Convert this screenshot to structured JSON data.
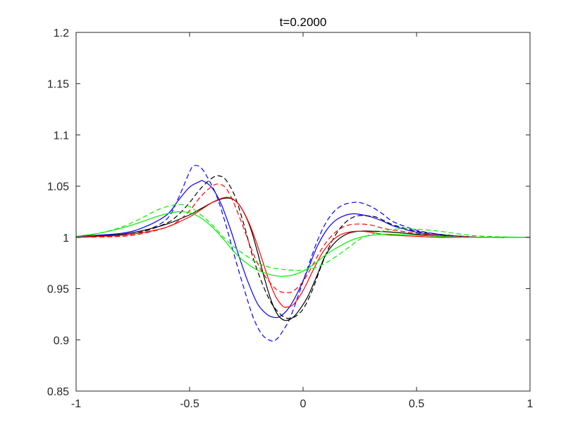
{
  "chart_data": {
    "type": "line",
    "title": "t=0.2000",
    "xlabel": "",
    "ylabel": "",
    "xlim": [
      -1,
      1
    ],
    "ylim": [
      0.85,
      1.2
    ],
    "xticks": [
      -1,
      -0.5,
      0,
      0.5,
      1
    ],
    "xtick_labels": [
      "-1",
      "-0.5",
      "0",
      "0.5",
      "1"
    ],
    "yticks": [
      0.85,
      0.9,
      0.95,
      1,
      1.05,
      1.1,
      1.15,
      1.2
    ],
    "ytick_labels": [
      "0.85",
      "0.9",
      "0.95",
      "1",
      "1.05",
      "1.1",
      "1.15",
      "1.2"
    ],
    "grid": false,
    "legend": "none",
    "series": [
      {
        "color": "#0000ff",
        "style": "dashed",
        "x": [
          -1.0,
          -0.8,
          -0.7,
          -0.6,
          -0.55,
          -0.5,
          -0.48,
          -0.45,
          -0.42,
          -0.38,
          -0.34,
          -0.3,
          -0.26,
          -0.22,
          -0.18,
          -0.14,
          -0.12,
          -0.1,
          -0.06,
          -0.02,
          0.02,
          0.06,
          0.1,
          0.14,
          0.18,
          0.22,
          0.25,
          0.3,
          0.35,
          0.4,
          0.5,
          0.6,
          0.7,
          0.8,
          1.0
        ],
        "y": [
          1.0,
          1.002,
          1.006,
          1.018,
          1.038,
          1.064,
          1.07,
          1.068,
          1.058,
          1.04,
          1.012,
          0.98,
          0.95,
          0.922,
          0.905,
          0.899,
          0.9,
          0.905,
          0.92,
          0.944,
          0.97,
          0.995,
          1.014,
          1.026,
          1.032,
          1.034,
          1.034,
          1.03,
          1.023,
          1.015,
          1.007,
          1.003,
          1.001,
          1.0,
          1.0
        ]
      },
      {
        "color": "#0000ff",
        "style": "solid",
        "x": [
          -1.0,
          -0.8,
          -0.7,
          -0.6,
          -0.55,
          -0.5,
          -0.46,
          -0.44,
          -0.4,
          -0.36,
          -0.32,
          -0.28,
          -0.24,
          -0.2,
          -0.16,
          -0.13,
          -0.1,
          -0.06,
          -0.02,
          0.02,
          0.06,
          0.1,
          0.14,
          0.18,
          0.22,
          0.26,
          0.3,
          0.35,
          0.4,
          0.5,
          0.6,
          0.7,
          0.8,
          1.0
        ],
        "y": [
          1.001,
          1.004,
          1.01,
          1.022,
          1.036,
          1.049,
          1.054,
          1.055,
          1.048,
          1.032,
          1.008,
          0.98,
          0.955,
          0.935,
          0.925,
          0.922,
          0.923,
          0.932,
          0.948,
          0.968,
          0.99,
          1.006,
          1.016,
          1.021,
          1.023,
          1.022,
          1.02,
          1.016,
          1.011,
          1.005,
          1.002,
          1.001,
          1.0,
          1.0
        ]
      },
      {
        "color": "#000000",
        "style": "dashed",
        "x": [
          -1.0,
          -0.8,
          -0.7,
          -0.6,
          -0.55,
          -0.5,
          -0.45,
          -0.4,
          -0.37,
          -0.34,
          -0.3,
          -0.26,
          -0.22,
          -0.18,
          -0.14,
          -0.1,
          -0.07,
          -0.04,
          0.0,
          0.04,
          0.08,
          0.12,
          0.16,
          0.2,
          0.24,
          0.28,
          0.32,
          0.36,
          0.4,
          0.5,
          0.6,
          0.7,
          0.8,
          1.0
        ],
        "y": [
          1.0,
          1.002,
          1.006,
          1.014,
          1.022,
          1.034,
          1.048,
          1.058,
          1.06,
          1.056,
          1.04,
          1.012,
          0.98,
          0.955,
          0.936,
          0.925,
          0.921,
          0.922,
          0.93,
          0.948,
          0.972,
          0.993,
          1.008,
          1.017,
          1.021,
          1.021,
          1.02,
          1.016,
          1.012,
          1.006,
          1.003,
          1.001,
          1.0,
          1.0
        ]
      },
      {
        "color": "#000000",
        "style": "solid",
        "x": [
          -1.0,
          -0.8,
          -0.7,
          -0.6,
          -0.5,
          -0.45,
          -0.4,
          -0.35,
          -0.32,
          -0.29,
          -0.26,
          -0.23,
          -0.2,
          -0.17,
          -0.14,
          -0.11,
          -0.08,
          -0.05,
          -0.02,
          0.02,
          0.06,
          0.1,
          0.15,
          0.2,
          0.25,
          0.3,
          0.4,
          0.5,
          0.6,
          0.7,
          0.8,
          1.0
        ],
        "y": [
          1.0,
          1.003,
          1.007,
          1.013,
          1.022,
          1.028,
          1.034,
          1.038,
          1.038,
          1.034,
          1.024,
          1.008,
          0.985,
          0.96,
          0.938,
          0.924,
          0.919,
          0.921,
          0.928,
          0.942,
          0.962,
          0.983,
          0.997,
          1.004,
          1.006,
          1.006,
          1.005,
          1.003,
          1.001,
          1.0,
          1.0,
          1.0
        ]
      },
      {
        "color": "#ff0000",
        "style": "dashed",
        "x": [
          -1.0,
          -0.8,
          -0.7,
          -0.6,
          -0.55,
          -0.5,
          -0.45,
          -0.4,
          -0.37,
          -0.34,
          -0.31,
          -0.27,
          -0.23,
          -0.19,
          -0.15,
          -0.11,
          -0.07,
          -0.04,
          0.0,
          0.04,
          0.08,
          0.12,
          0.16,
          0.2,
          0.25,
          0.3,
          0.35,
          0.4,
          0.5,
          0.6,
          0.7,
          0.8,
          1.0
        ],
        "y": [
          1.0,
          1.001,
          1.004,
          1.01,
          1.016,
          1.026,
          1.04,
          1.05,
          1.052,
          1.048,
          1.036,
          1.014,
          0.99,
          0.97,
          0.957,
          0.948,
          0.946,
          0.948,
          0.957,
          0.972,
          0.988,
          1.0,
          1.008,
          1.012,
          1.013,
          1.012,
          1.009,
          1.007,
          1.004,
          1.002,
          1.001,
          1.0,
          1.0
        ]
      },
      {
        "color": "#ff0000",
        "style": "solid",
        "x": [
          -1.0,
          -0.8,
          -0.7,
          -0.6,
          -0.5,
          -0.45,
          -0.4,
          -0.36,
          -0.33,
          -0.3,
          -0.27,
          -0.24,
          -0.21,
          -0.18,
          -0.15,
          -0.12,
          -0.09,
          -0.07,
          -0.04,
          0.0,
          0.04,
          0.08,
          0.12,
          0.16,
          0.2,
          0.25,
          0.3,
          0.35,
          0.4,
          0.5,
          0.6,
          0.7,
          0.8,
          1.0
        ],
        "y": [
          1.0,
          1.002,
          1.005,
          1.01,
          1.02,
          1.027,
          1.034,
          1.038,
          1.039,
          1.036,
          1.028,
          1.015,
          0.998,
          0.978,
          0.958,
          0.942,
          0.933,
          0.932,
          0.935,
          0.948,
          0.966,
          0.983,
          0.995,
          1.002,
          1.005,
          1.006,
          1.005,
          1.003,
          1.002,
          1.001,
          1.0,
          1.0,
          1.0,
          1.0
        ]
      },
      {
        "color": "#00ee00",
        "style": "dashed",
        "x": [
          -1.0,
          -0.9,
          -0.8,
          -0.7,
          -0.65,
          -0.6,
          -0.55,
          -0.5,
          -0.45,
          -0.4,
          -0.35,
          -0.3,
          -0.25,
          -0.2,
          -0.15,
          -0.1,
          -0.05,
          0.0,
          0.05,
          0.1,
          0.15,
          0.2,
          0.25,
          0.3,
          0.35,
          0.4,
          0.5,
          0.6,
          0.7,
          0.8,
          1.0
        ],
        "y": [
          1.001,
          1.004,
          1.01,
          1.02,
          1.026,
          1.03,
          1.032,
          1.03,
          1.022,
          1.012,
          1.0,
          0.99,
          0.982,
          0.975,
          0.971,
          0.969,
          0.968,
          0.968,
          0.97,
          0.975,
          0.982,
          0.99,
          0.998,
          1.003,
          1.006,
          1.008,
          1.008,
          1.006,
          1.003,
          1.001,
          1.0
        ]
      },
      {
        "color": "#00ee00",
        "style": "solid",
        "x": [
          -1.0,
          -0.9,
          -0.8,
          -0.7,
          -0.65,
          -0.6,
          -0.55,
          -0.5,
          -0.45,
          -0.4,
          -0.35,
          -0.3,
          -0.25,
          -0.2,
          -0.15,
          -0.1,
          -0.05,
          0.0,
          0.05,
          0.1,
          0.15,
          0.2,
          0.25,
          0.3,
          0.35,
          0.4,
          0.5,
          0.6,
          0.7,
          0.8,
          1.0
        ],
        "y": [
          1.001,
          1.004,
          1.009,
          1.016,
          1.02,
          1.023,
          1.025,
          1.024,
          1.019,
          1.01,
          0.998,
          0.985,
          0.975,
          0.968,
          0.964,
          0.962,
          0.963,
          0.967,
          0.974,
          0.983,
          0.99,
          0.996,
          1.0,
          1.002,
          1.003,
          1.003,
          1.002,
          1.001,
          1.0,
          1.0,
          1.0
        ]
      }
    ]
  }
}
